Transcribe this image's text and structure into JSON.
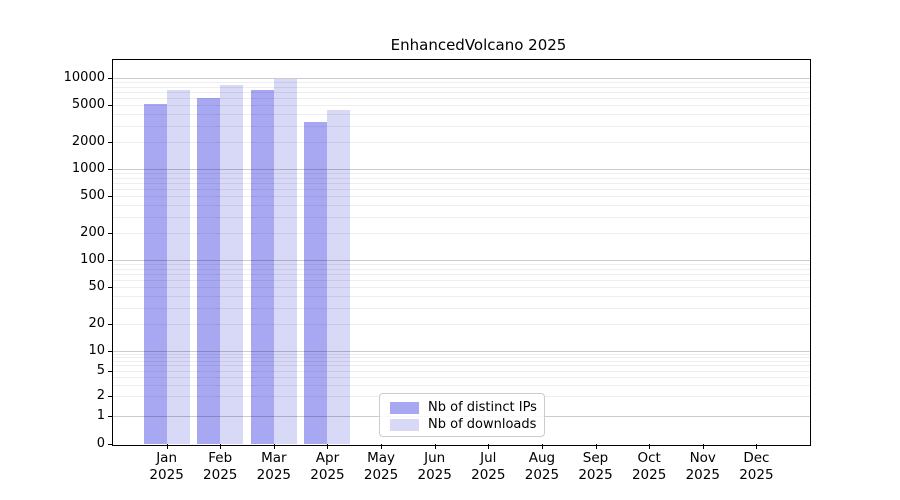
{
  "chart_data": {
    "type": "bar",
    "title": "EnhancedVolcano 2025",
    "categories": [
      "Jan 2025",
      "Feb 2025",
      "Mar 2025",
      "Apr 2025",
      "May 2025",
      "Jun 2025",
      "Jul 2025",
      "Aug 2025",
      "Sep 2025",
      "Oct 2025",
      "Nov 2025",
      "Dec 2025"
    ],
    "series": [
      {
        "name": "Nb of distinct IPs",
        "color": "#a8a8f2",
        "values": [
          5200,
          6000,
          7400,
          3300,
          null,
          null,
          null,
          null,
          null,
          null,
          null,
          null
        ]
      },
      {
        "name": "Nb of downloads",
        "color": "#d8d8f7",
        "values": [
          7400,
          8300,
          9700,
          4400,
          null,
          null,
          null,
          null,
          null,
          null,
          null,
          null
        ]
      }
    ],
    "y_axis": {
      "scale": "symlog",
      "tick_labels": [
        "0",
        "1",
        "2",
        "5",
        "10",
        "20",
        "50",
        "100",
        "200",
        "500",
        "1000",
        "2000",
        "5000",
        "10000"
      ],
      "range": [
        0,
        15000
      ]
    },
    "legend": {
      "position": "lower-center"
    },
    "grid": true,
    "colors": {
      "axis": "#000000",
      "major_grid": "#c9c9c9",
      "minor_grid": "#ededed",
      "background": "#ffffff"
    }
  }
}
